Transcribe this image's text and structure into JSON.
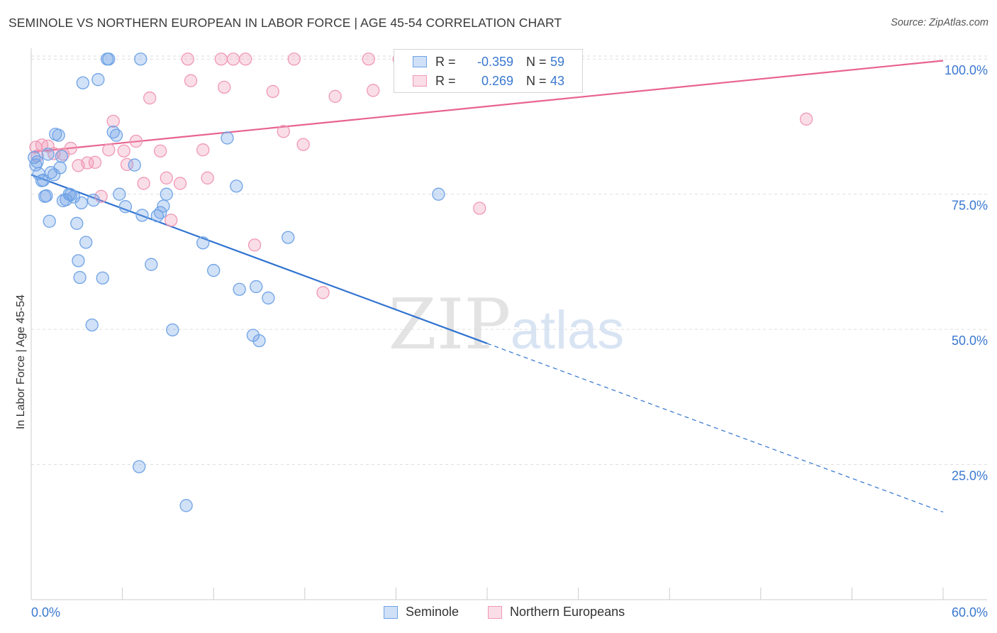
{
  "header": {
    "title": "SEMINOLE VS NORTHERN EUROPEAN IN LABOR FORCE | AGE 45-54 CORRELATION CHART",
    "source": "Source: ZipAtlas.com"
  },
  "watermark": {
    "zip": "ZIP",
    "atlas": "atlas"
  },
  "legend": {
    "rows": [
      {
        "r_label": "R =",
        "r_value": "-0.359",
        "n_label": "N =",
        "n_value": "59",
        "color": "#6fa3e6"
      },
      {
        "r_label": "R =",
        "r_value": "0.269",
        "n_label": "N =",
        "n_value": "43",
        "color": "#f098b5"
      }
    ]
  },
  "bottom_legend": [
    {
      "label": "Seminole",
      "color": "#6fa3e6"
    },
    {
      "label": "Northern Europeans",
      "color": "#f098b5"
    }
  ],
  "chart_data": {
    "type": "scatter",
    "title": "SEMINOLE VS NORTHERN EUROPEAN IN LABOR FORCE | AGE 45-54 CORRELATION CHART",
    "xlabel": "",
    "ylabel": "In Labor Force | Age 45-54",
    "xlim": [
      0,
      60
    ],
    "ylim": [
      0,
      102
    ],
    "x_tick_labels": [
      "0.0%",
      "60.0%"
    ],
    "y_ticks": [
      25,
      50,
      75,
      100
    ],
    "y_tick_labels": [
      "25.0%",
      "50.0%",
      "75.0%",
      "100.0%"
    ],
    "grid": true,
    "series": [
      {
        "name": "Seminole",
        "color": "#6fa3e6",
        "line_color": "#2f72d0",
        "trend": {
          "x_start": 0,
          "y_start": 78.6,
          "x_solid_end": 30,
          "x_end": 60,
          "y_end": 16.2
        },
        "points": [
          [
            0.3,
            80.4
          ],
          [
            0.4,
            81.0
          ],
          [
            0.5,
            78.8
          ],
          [
            0.7,
            77.5
          ],
          [
            0.8,
            77.6
          ],
          [
            0.9,
            74.6
          ],
          [
            1.0,
            74.7
          ],
          [
            1.1,
            82.4
          ],
          [
            1.2,
            70.0
          ],
          [
            1.3,
            79.0
          ],
          [
            1.5,
            78.6
          ],
          [
            1.6,
            86.1
          ],
          [
            1.8,
            85.9
          ],
          [
            1.9,
            79.9
          ],
          [
            2.0,
            82.0
          ],
          [
            2.1,
            73.8
          ],
          [
            2.3,
            74.0
          ],
          [
            2.5,
            75.0
          ],
          [
            2.6,
            74.9
          ],
          [
            2.8,
            74.5
          ],
          [
            3.0,
            69.6
          ],
          [
            3.1,
            62.7
          ],
          [
            3.2,
            59.6
          ],
          [
            3.3,
            73.4
          ],
          [
            3.4,
            95.6
          ],
          [
            3.6,
            66.1
          ],
          [
            4.0,
            50.8
          ],
          [
            4.1,
            73.9
          ],
          [
            4.4,
            96.2
          ],
          [
            4.7,
            59.5
          ],
          [
            5.0,
            100.0
          ],
          [
            5.1,
            100.0
          ],
          [
            5.4,
            86.5
          ],
          [
            5.6,
            85.9
          ],
          [
            5.8,
            75.0
          ],
          [
            6.2,
            72.7
          ],
          [
            6.8,
            80.4
          ],
          [
            7.1,
            24.6
          ],
          [
            7.2,
            100.0
          ],
          [
            7.3,
            71.1
          ],
          [
            7.9,
            62.0
          ],
          [
            8.3,
            71.0
          ],
          [
            8.5,
            71.6
          ],
          [
            8.7,
            72.8
          ],
          [
            8.9,
            75.0
          ],
          [
            9.3,
            49.9
          ],
          [
            10.2,
            17.4
          ],
          [
            11.3,
            66.0
          ],
          [
            12.0,
            60.9
          ],
          [
            12.9,
            85.4
          ],
          [
            13.5,
            76.5
          ],
          [
            13.7,
            57.4
          ],
          [
            14.6,
            48.9
          ],
          [
            14.8,
            57.9
          ],
          [
            15.0,
            47.9
          ],
          [
            15.6,
            55.8
          ],
          [
            16.9,
            67.0
          ],
          [
            26.8,
            75.0
          ],
          [
            0.2,
            81.8
          ]
        ]
      },
      {
        "name": "Northern Europeans",
        "color": "#f098b5",
        "line_color": "#e8638f",
        "trend": {
          "x_start": 0,
          "y_start": 82.8,
          "x_end": 60,
          "y_end": 99.7
        },
        "points": [
          [
            0.3,
            83.7
          ],
          [
            0.4,
            82.1
          ],
          [
            0.7,
            84.1
          ],
          [
            1.1,
            83.9
          ],
          [
            1.5,
            82.5
          ],
          [
            2.1,
            82.4
          ],
          [
            2.6,
            83.5
          ],
          [
            3.1,
            80.3
          ],
          [
            3.7,
            80.8
          ],
          [
            4.2,
            80.9
          ],
          [
            4.6,
            74.6
          ],
          [
            5.1,
            83.2
          ],
          [
            5.4,
            88.5
          ],
          [
            6.1,
            83.0
          ],
          [
            6.3,
            80.5
          ],
          [
            6.9,
            84.8
          ],
          [
            7.4,
            77.0
          ],
          [
            7.8,
            92.8
          ],
          [
            8.5,
            83.0
          ],
          [
            8.9,
            78.0
          ],
          [
            9.2,
            70.2
          ],
          [
            9.8,
            77.0
          ],
          [
            10.3,
            100.0
          ],
          [
            10.5,
            96.0
          ],
          [
            11.3,
            83.2
          ],
          [
            11.6,
            78.0
          ],
          [
            12.5,
            100.0
          ],
          [
            12.7,
            94.8
          ],
          [
            13.3,
            100.0
          ],
          [
            14.1,
            100.0
          ],
          [
            14.7,
            65.6
          ],
          [
            15.9,
            94.0
          ],
          [
            16.6,
            86.6
          ],
          [
            17.3,
            100.0
          ],
          [
            17.9,
            84.2
          ],
          [
            19.2,
            56.8
          ],
          [
            20.0,
            93.1
          ],
          [
            22.2,
            100.0
          ],
          [
            22.5,
            94.2
          ],
          [
            24.2,
            100.0
          ],
          [
            27.4,
            100.0
          ],
          [
            29.5,
            72.4
          ],
          [
            51.0,
            88.9
          ]
        ]
      }
    ]
  }
}
